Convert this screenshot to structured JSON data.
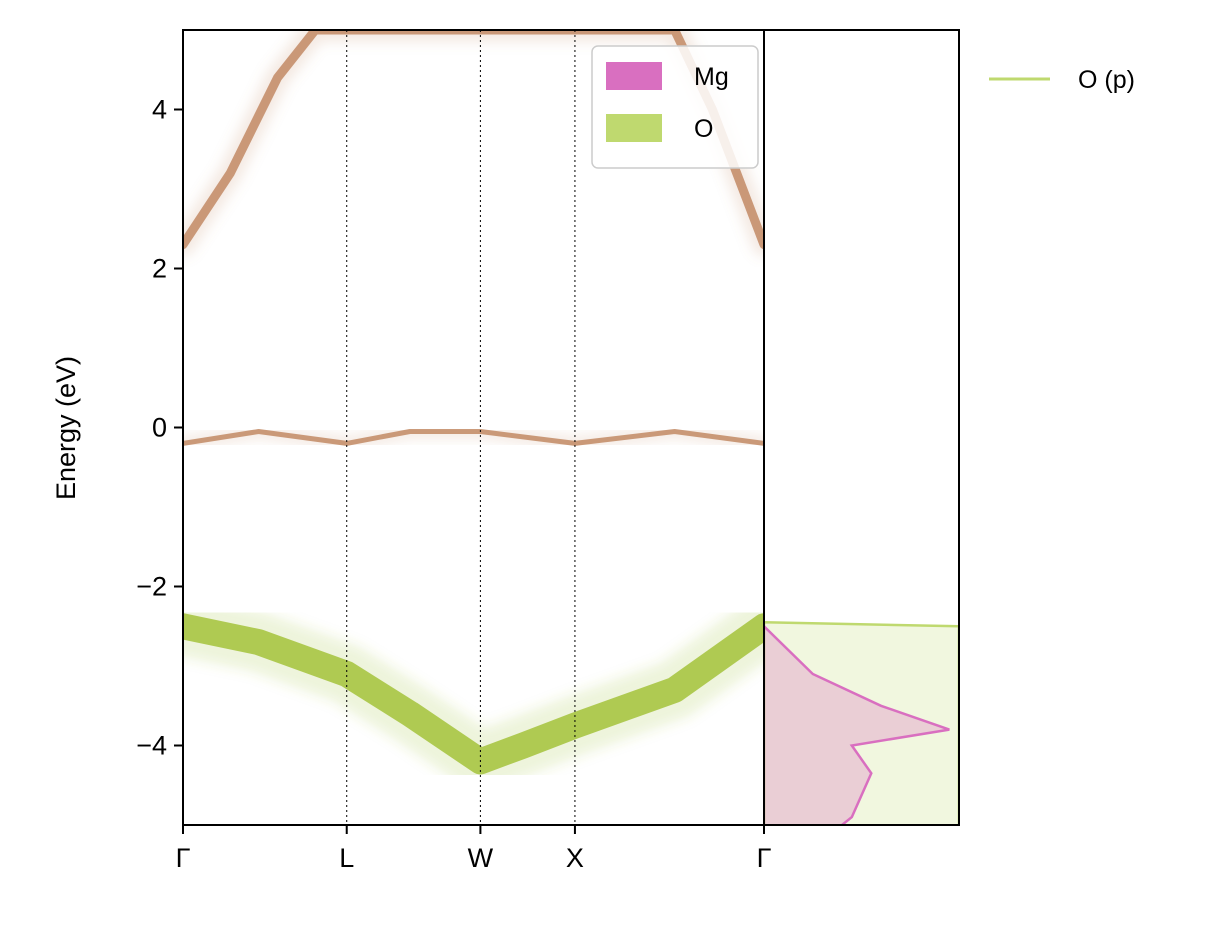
{
  "chart_data": {
    "type": "band_structure_with_dos",
    "ylabel": "Energy (eV)",
    "ylim": [
      -5,
      5
    ],
    "y_ticks": [
      {
        "value": 4,
        "label": "4"
      },
      {
        "value": 2,
        "label": "2"
      },
      {
        "value": 0,
        "label": "0"
      },
      {
        "value": -2,
        "label": "−2"
      },
      {
        "value": -4,
        "label": "−4"
      }
    ],
    "k_path": [
      {
        "label": "Γ",
        "position": 0.0
      },
      {
        "label": "L",
        "position": 0.866
      },
      {
        "label": "W",
        "position": 1.573
      },
      {
        "label": "X",
        "position": 2.073
      },
      {
        "label": "Γ",
        "position": 3.073
      }
    ],
    "legend_bands": [
      {
        "name": "Mg",
        "color": "#d96fc0"
      },
      {
        "name": "O",
        "color": "#bfd96f"
      }
    ],
    "legend_dos": [
      {
        "name": "O (p)",
        "color": "#bfd96f"
      }
    ],
    "band_colors": {
      "conduction": "#c28a64",
      "valence": "#a3c23a"
    },
    "bands": {
      "valence_top": [
        {
          "k": 0.0,
          "e": -2.5
        },
        {
          "k": 0.4,
          "e": -2.7
        },
        {
          "k": 0.866,
          "e": -3.1
        },
        {
          "k": 1.2,
          "e": -3.6
        },
        {
          "k": 1.573,
          "e": -4.2
        },
        {
          "k": 1.8,
          "e": -4.0
        },
        {
          "k": 2.073,
          "e": -3.75
        },
        {
          "k": 2.6,
          "e": -3.3
        },
        {
          "k": 3.073,
          "e": -2.5
        }
      ],
      "flat_band_near_zero": [
        {
          "k": 0.0,
          "e": -0.2
        },
        {
          "k": 0.4,
          "e": -0.05
        },
        {
          "k": 0.866,
          "e": -0.2
        },
        {
          "k": 1.2,
          "e": -0.05
        },
        {
          "k": 1.573,
          "e": -0.05
        },
        {
          "k": 2.073,
          "e": -0.2
        },
        {
          "k": 2.6,
          "e": -0.05
        },
        {
          "k": 3.073,
          "e": -0.2
        }
      ],
      "conduction_bottom": [
        {
          "k": 0.0,
          "e": 2.3
        },
        {
          "k": 0.25,
          "e": 3.2
        },
        {
          "k": 0.5,
          "e": 4.4
        },
        {
          "k": 0.7,
          "e": 5.0
        },
        {
          "k": 2.6,
          "e": 5.0
        },
        {
          "k": 2.8,
          "e": 4.0
        },
        {
          "k": 3.073,
          "e": 2.3
        }
      ]
    },
    "dos": {
      "energy_range": [
        -5,
        5
      ],
      "series": [
        {
          "name": "O (p)",
          "color": "#bfd96f",
          "points": [
            {
              "e": -5.0,
              "d": 0.0
            },
            {
              "e": -2.45,
              "d": 0.0
            },
            {
              "e": -2.5,
              "d": 1.0
            },
            {
              "e": -5.0,
              "d": 1.0
            }
          ]
        },
        {
          "name": "Mg",
          "color": "#d96fc0",
          "points": [
            {
              "e": -5.0,
              "d": 0.4
            },
            {
              "e": -4.9,
              "d": 0.45
            },
            {
              "e": -4.35,
              "d": 0.55
            },
            {
              "e": -4.0,
              "d": 0.45
            },
            {
              "e": -3.8,
              "d": 0.95
            },
            {
              "e": -3.5,
              "d": 0.6
            },
            {
              "e": -3.1,
              "d": 0.25
            },
            {
              "e": -2.5,
              "d": 0.0
            }
          ]
        }
      ]
    }
  }
}
